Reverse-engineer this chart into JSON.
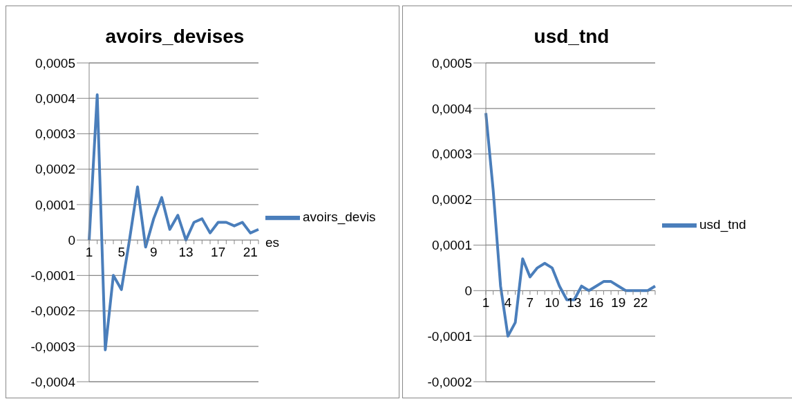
{
  "chart_data": [
    {
      "type": "line",
      "title": "avoirs_devises",
      "categories": [
        "1",
        null,
        null,
        null,
        "5",
        null,
        null,
        null,
        "9",
        null,
        null,
        null,
        "13",
        null,
        null,
        null,
        "17",
        null,
        null,
        null,
        "21",
        null
      ],
      "series": [
        {
          "name": "avoirs_devises",
          "color": "#4a7ebb",
          "values": [
            0,
            0.00041,
            -0.00031,
            -0.0001,
            -0.00014,
            0,
            0.00015,
            -2e-05,
            6e-05,
            0.00012,
            3e-05,
            7e-05,
            0,
            5e-05,
            6e-05,
            2e-05,
            5e-05,
            5e-05,
            4e-05,
            5e-05,
            2e-05,
            3e-05
          ]
        }
      ],
      "ylim": [
        -0.0004,
        0.0005
      ],
      "yticks": [
        {
          "value": -0.0004,
          "label": "-0,0004"
        },
        {
          "value": -0.0003,
          "label": "-0,0003"
        },
        {
          "value": -0.0002,
          "label": "-0,0002"
        },
        {
          "value": -0.0001,
          "label": "-0,0001"
        },
        {
          "value": 0,
          "label": "0"
        },
        {
          "value": 0.0001,
          "label": "0,0001"
        },
        {
          "value": 0.0002,
          "label": "0,0002"
        },
        {
          "value": 0.0003,
          "label": "0,0003"
        },
        {
          "value": 0.0004,
          "label": "0,0004"
        },
        {
          "value": 0.0005,
          "label": "0,0005"
        }
      ],
      "grid": "y",
      "legend": "right",
      "marker": "none",
      "line_style": "solid"
    },
    {
      "type": "line",
      "title": "usd_tnd",
      "categories": [
        "1",
        null,
        null,
        "4",
        null,
        null,
        "7",
        null,
        null,
        "10",
        null,
        null,
        "13",
        null,
        null,
        "16",
        null,
        null,
        "19",
        null,
        null,
        "22",
        null,
        null
      ],
      "series": [
        {
          "name": "usd_tnd",
          "color": "#4a7ebb",
          "values": [
            0.00039,
            0.00022,
            1e-05,
            -0.0001,
            -7e-05,
            7e-05,
            3e-05,
            5e-05,
            6e-05,
            5e-05,
            1e-05,
            -2e-05,
            -2e-05,
            1e-05,
            0,
            1e-05,
            2e-05,
            2e-05,
            1e-05,
            0,
            0,
            0,
            0,
            1e-05
          ]
        }
      ],
      "ylim": [
        -0.0002,
        0.0005
      ],
      "yticks": [
        {
          "value": -0.0002,
          "label": "-0,0002"
        },
        {
          "value": -0.0001,
          "label": "-0,0001"
        },
        {
          "value": 0,
          "label": "0"
        },
        {
          "value": 0.0001,
          "label": "0,0001"
        },
        {
          "value": 0.0002,
          "label": "0,0002"
        },
        {
          "value": 0.0003,
          "label": "0,0003"
        },
        {
          "value": 0.0004,
          "label": "0,0004"
        },
        {
          "value": 0.0005,
          "label": "0,0005"
        }
      ],
      "grid": "y",
      "legend": "right",
      "marker": "none",
      "line_style": "solid"
    }
  ]
}
